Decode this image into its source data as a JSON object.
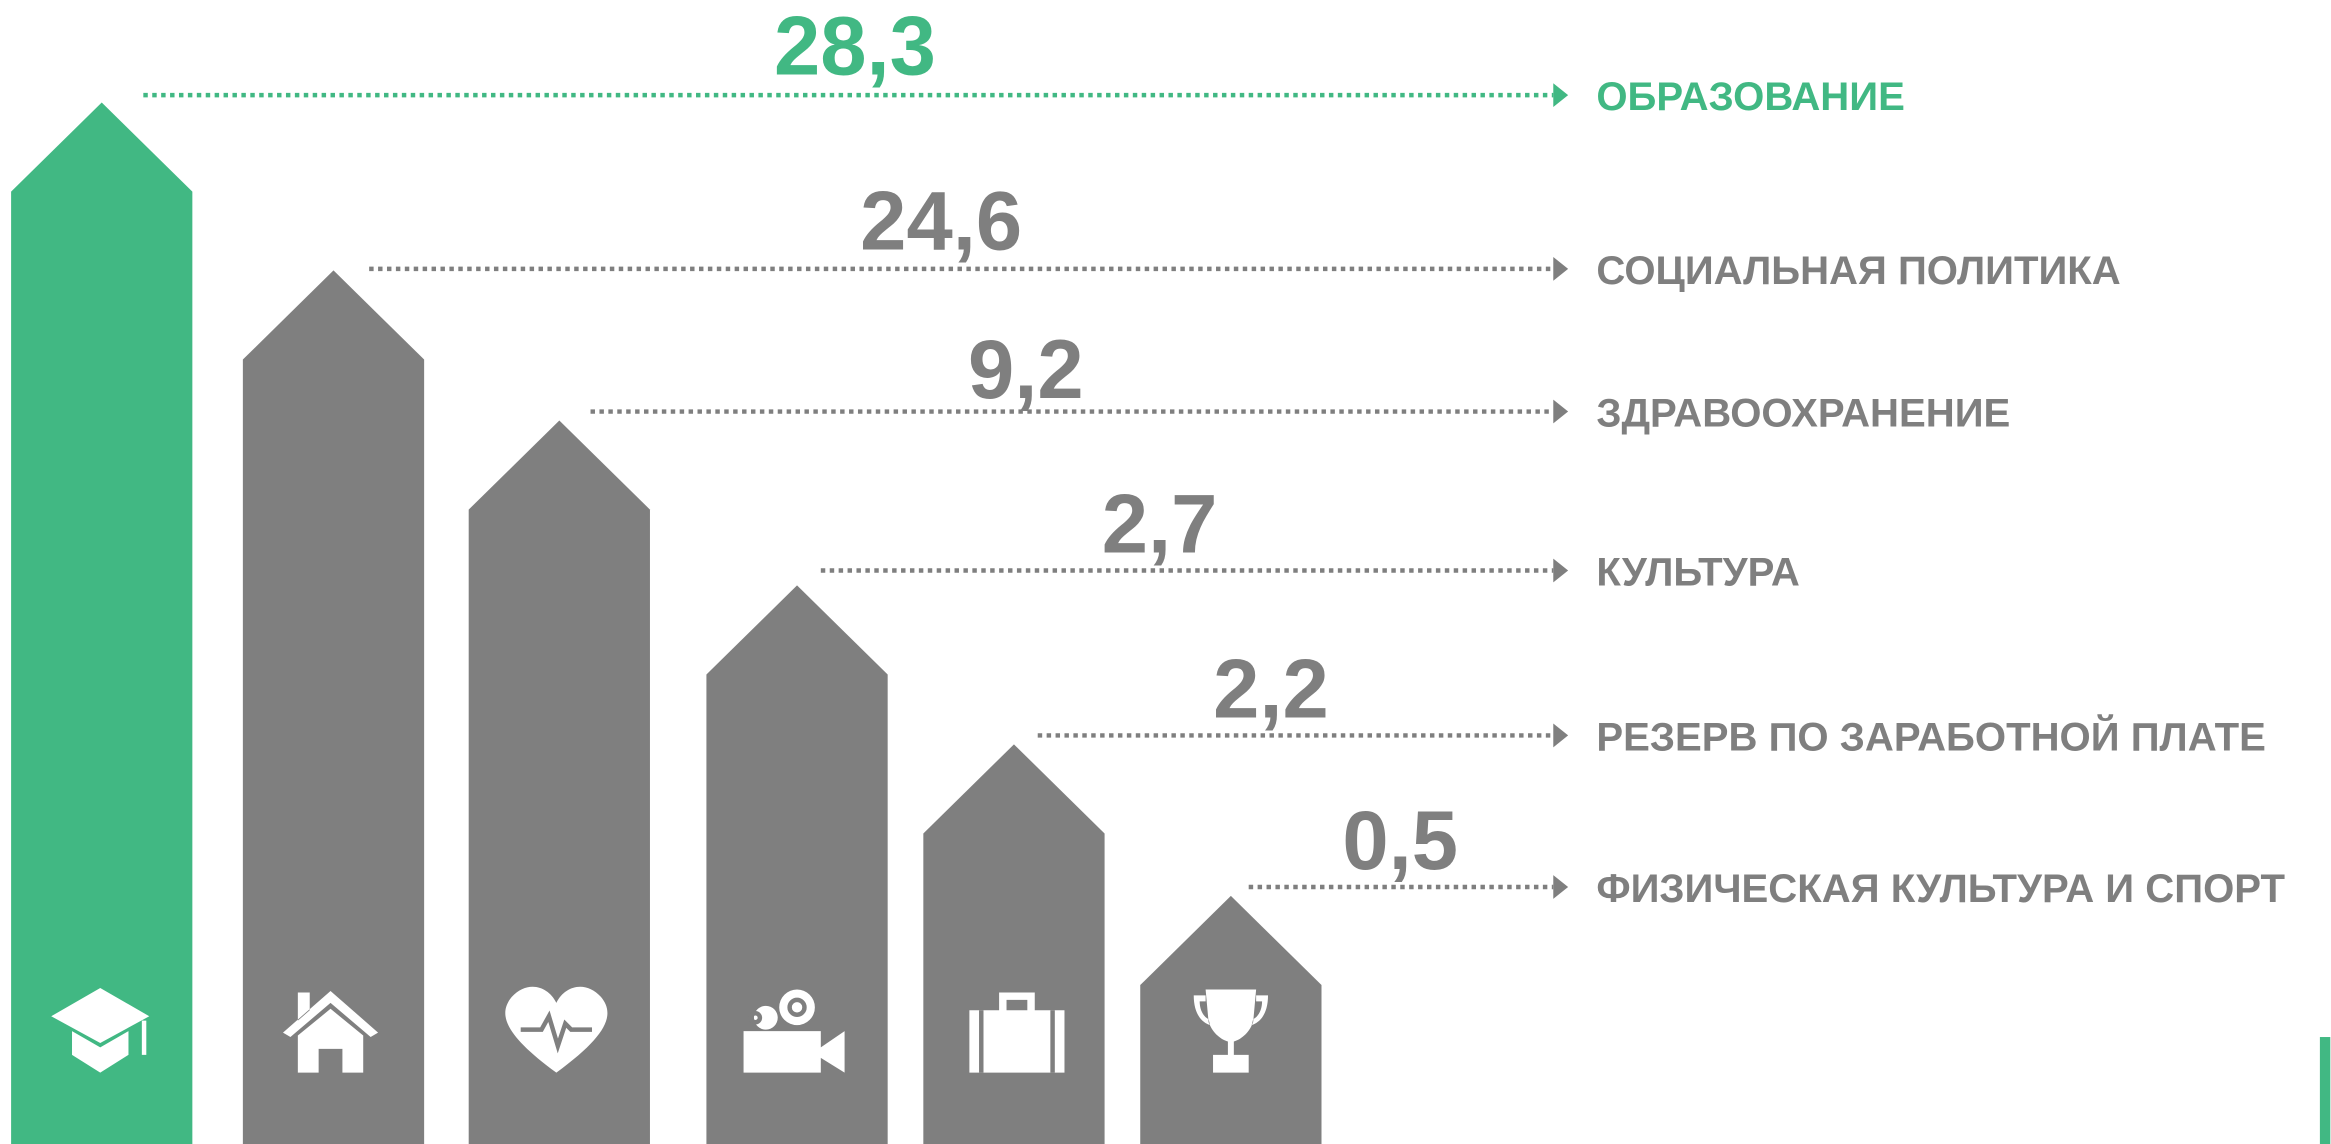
{
  "items": [
    {
      "value": "28,3",
      "label": "ОБРАЗОВАНИЕ",
      "color": "#41b883"
    },
    {
      "value": "24,6",
      "label": "СОЦИАЛЬНАЯ ПОЛИТИКА",
      "color": "#7f7f7f"
    },
    {
      "value": "9,2",
      "label": "ЗДРАВООХРАНЕНИЕ",
      "color": "#7f7f7f"
    },
    {
      "value": "2,7",
      "label": "КУЛЬТУРА",
      "color": "#7f7f7f"
    },
    {
      "value": "2,2",
      "label": "РЕЗЕРВ ПО ЗАРАБОТНОЙ ПЛАТЕ",
      "color": "#7f7f7f"
    },
    {
      "value": "0,5",
      "label": "ФИЗИЧЕСКАЯ КУЛЬТУРА И СПОРТ",
      "color": "#7f7f7f"
    }
  ]
}
